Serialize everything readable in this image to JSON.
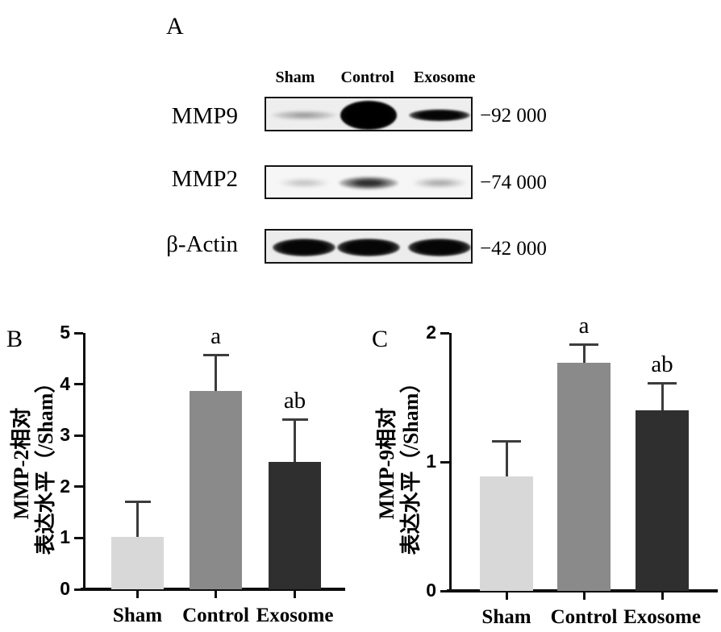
{
  "panel_a": {
    "label": "A",
    "lane_headers": [
      "Sham",
      "Control",
      "Exosome"
    ],
    "rows": [
      {
        "protein": "MMP9",
        "weight": "−92 000",
        "bands": [
          "faint",
          "blob",
          "strong"
        ]
      },
      {
        "protein": "MMP2",
        "weight": "−74 000",
        "bands": [
          "weak",
          "medium",
          "dim"
        ]
      },
      {
        "protein": "β-Actin",
        "weight": "−42 000",
        "bands": [
          "strong-wide",
          "strong-wide",
          "strong-wide"
        ]
      }
    ]
  },
  "chart_data": [
    {
      "type": "bar",
      "panel": "B",
      "categories": [
        "Sham",
        "Control",
        "Exosome"
      ],
      "values": [
        1.02,
        3.87,
        2.48
      ],
      "errors_upper": [
        0.69,
        0.71,
        0.84
      ],
      "significance": [
        "",
        "a",
        "ab"
      ],
      "ylabel": "MMP-2相对表达水平（/Sham）",
      "ylabel_lines": [
        "MMP-2相对",
        "表达水平（/Sham）"
      ],
      "ylim": [
        0,
        5
      ],
      "yticks": [
        0,
        1,
        2,
        3,
        4,
        5
      ],
      "bar_colors": [
        "#d8d8d8",
        "#8a8a8a",
        "#2f2f2f"
      ],
      "grid": false,
      "legend": null
    },
    {
      "type": "bar",
      "panel": "C",
      "categories": [
        "Sham",
        "Control",
        "Exosome"
      ],
      "values": [
        0.89,
        1.77,
        1.4
      ],
      "errors_upper": [
        0.27,
        0.14,
        0.21
      ],
      "significance": [
        "",
        "a",
        "ab"
      ],
      "ylabel": "MMP-9相对表达水平（/Sham）",
      "ylabel_lines": [
        "MMP-9相对",
        "表达水平（/Sham）"
      ],
      "ylim": [
        0,
        2
      ],
      "yticks": [
        0,
        1,
        2
      ],
      "bar_colors": [
        "#d8d8d8",
        "#8a8a8a",
        "#2f2f2f"
      ],
      "grid": false,
      "legend": null
    }
  ]
}
